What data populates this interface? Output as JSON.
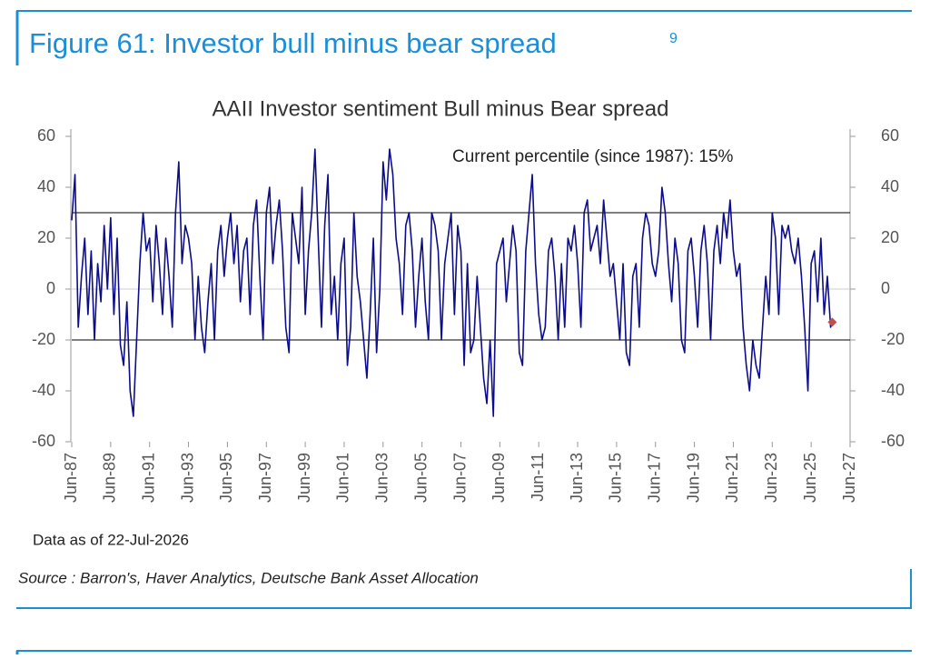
{
  "header": {
    "title": "Figure 61: Investor bull minus bear spread",
    "footnote": "9"
  },
  "chart_data": {
    "type": "line",
    "title": "AAII Investor sentiment Bull minus Bear spread",
    "annotation": "Current percentile (since 1987): 15%",
    "x": [
      "1987-06",
      "1987-08",
      "1987-10",
      "1987-12",
      "1988-02",
      "1988-04",
      "1988-06",
      "1988-08",
      "1988-10",
      "1988-12",
      "1989-02",
      "1989-04",
      "1989-06",
      "1989-08",
      "1989-10",
      "1989-12",
      "1990-02",
      "1990-04",
      "1990-06",
      "1990-08",
      "1990-10",
      "1990-12",
      "1991-02",
      "1991-04",
      "1991-06",
      "1991-08",
      "1991-10",
      "1991-12",
      "1992-02",
      "1992-04",
      "1992-06",
      "1992-08",
      "1992-10",
      "1992-12",
      "1993-02",
      "1993-04",
      "1993-06",
      "1993-08",
      "1993-10",
      "1993-12",
      "1994-02",
      "1994-04",
      "1994-06",
      "1994-08",
      "1994-10",
      "1994-12",
      "1995-02",
      "1995-04",
      "1995-06",
      "1995-08",
      "1995-10",
      "1995-12",
      "1996-02",
      "1996-04",
      "1996-06",
      "1996-08",
      "1996-10",
      "1996-12",
      "1997-02",
      "1997-04",
      "1997-06",
      "1997-08",
      "1997-10",
      "1997-12",
      "1998-02",
      "1998-04",
      "1998-06",
      "1998-08",
      "1998-10",
      "1998-12",
      "1999-02",
      "1999-04",
      "1999-06",
      "1999-08",
      "1999-10",
      "1999-12",
      "2000-02",
      "2000-04",
      "2000-06",
      "2000-08",
      "2000-10",
      "2000-12",
      "2001-02",
      "2001-04",
      "2001-06",
      "2001-08",
      "2001-10",
      "2001-12",
      "2002-02",
      "2002-04",
      "2002-06",
      "2002-08",
      "2002-10",
      "2002-12",
      "2003-02",
      "2003-04",
      "2003-06",
      "2003-08",
      "2003-10",
      "2003-12",
      "2004-02",
      "2004-04",
      "2004-06",
      "2004-08",
      "2004-10",
      "2004-12",
      "2005-02",
      "2005-04",
      "2005-06",
      "2005-08",
      "2005-10",
      "2005-12",
      "2006-02",
      "2006-04",
      "2006-06",
      "2006-08",
      "2006-10",
      "2006-12",
      "2007-02",
      "2007-04",
      "2007-06",
      "2007-08",
      "2007-10",
      "2007-12",
      "2008-02",
      "2008-04",
      "2008-06",
      "2008-08",
      "2008-10",
      "2008-12",
      "2009-02",
      "2009-04",
      "2009-06",
      "2009-08",
      "2009-10",
      "2009-12",
      "2010-02",
      "2010-04",
      "2010-06",
      "2010-08",
      "2010-10",
      "2010-12",
      "2011-02",
      "2011-04",
      "2011-06",
      "2011-08",
      "2011-10",
      "2011-12",
      "2012-02",
      "2012-04",
      "2012-06",
      "2012-08",
      "2012-10",
      "2012-12",
      "2013-02",
      "2013-04",
      "2013-06",
      "2013-08",
      "2013-10",
      "2013-12",
      "2014-02",
      "2014-04",
      "2014-06",
      "2014-08",
      "2014-10",
      "2014-12",
      "2015-02",
      "2015-04",
      "2015-06",
      "2015-08",
      "2015-10",
      "2015-12",
      "2016-02",
      "2016-04",
      "2016-06",
      "2016-08",
      "2016-10",
      "2016-12",
      "2017-02",
      "2017-04",
      "2017-06",
      "2017-08",
      "2017-10",
      "2017-12",
      "2018-02",
      "2018-04",
      "2018-06",
      "2018-08",
      "2018-10",
      "2018-12",
      "2019-02",
      "2019-04",
      "2019-06",
      "2019-08",
      "2019-10",
      "2019-12",
      "2020-02",
      "2020-04",
      "2020-06",
      "2020-08",
      "2020-10",
      "2020-12",
      "2021-02",
      "2021-04",
      "2021-06",
      "2021-08",
      "2021-10",
      "2021-12",
      "2022-02",
      "2022-04",
      "2022-06",
      "2022-08",
      "2022-10",
      "2022-12",
      "2023-02",
      "2023-04",
      "2023-06",
      "2023-08",
      "2023-10",
      "2023-12",
      "2024-02",
      "2024-04",
      "2024-06",
      "2024-08",
      "2024-10",
      "2024-12",
      "2025-02",
      "2025-04",
      "2025-06",
      "2025-08",
      "2025-10",
      "2025-12",
      "2026-02",
      "2026-04",
      "2026-06",
      "2026-07"
    ],
    "series": [
      {
        "color": "#0d0d8a",
        "values": [
          27,
          45,
          -15,
          5,
          20,
          -10,
          15,
          -20,
          10,
          -5,
          25,
          0,
          28,
          -10,
          20,
          -22,
          -30,
          -5,
          -40,
          -50,
          -20,
          10,
          30,
          15,
          20,
          -5,
          25,
          10,
          -10,
          20,
          5,
          -15,
          30,
          50,
          10,
          25,
          20,
          10,
          -20,
          5,
          -15,
          -25,
          -5,
          10,
          -20,
          15,
          25,
          5,
          20,
          30,
          10,
          25,
          -5,
          15,
          20,
          -10,
          25,
          35,
          5,
          -20,
          30,
          40,
          10,
          25,
          35,
          15,
          -15,
          -25,
          30,
          20,
          10,
          40,
          -10,
          15,
          30,
          55,
          20,
          -15,
          25,
          45,
          -10,
          5,
          -20,
          10,
          20,
          -30,
          -15,
          30,
          5,
          -5,
          -20,
          -35,
          -10,
          20,
          -25,
          0,
          50,
          35,
          55,
          45,
          20,
          10,
          -10,
          25,
          30,
          15,
          -15,
          5,
          20,
          -5,
          -20,
          30,
          25,
          15,
          -20,
          10,
          20,
          30,
          -10,
          25,
          15,
          -30,
          10,
          -25,
          -20,
          5,
          -15,
          -35,
          -45,
          -20,
          -50,
          10,
          15,
          20,
          -5,
          10,
          25,
          15,
          -25,
          -30,
          15,
          30,
          45,
          10,
          -10,
          -20,
          -15,
          15,
          20,
          5,
          -20,
          10,
          -15,
          20,
          15,
          25,
          10,
          -15,
          30,
          35,
          15,
          20,
          25,
          10,
          35,
          20,
          5,
          10,
          -5,
          -20,
          10,
          -25,
          -30,
          5,
          10,
          -15,
          20,
          30,
          25,
          10,
          5,
          15,
          40,
          30,
          10,
          -5,
          20,
          10,
          -20,
          -25,
          15,
          20,
          5,
          -15,
          15,
          25,
          10,
          -20,
          15,
          25,
          10,
          30,
          20,
          35,
          15,
          5,
          10,
          -15,
          -30,
          -40,
          -20,
          -30,
          -35,
          -15,
          5,
          -10,
          30,
          20,
          -10,
          25,
          20,
          25,
          15,
          10,
          20,
          5,
          -15,
          -40,
          10,
          15,
          -5,
          20,
          -10,
          5,
          -15,
          -13
        ]
      }
    ],
    "latest": {
      "x": "2026-07",
      "value": -13,
      "color": "#c0504d"
    },
    "reference_lines": [
      30,
      -20
    ],
    "xlim": [
      "1987-06",
      "2027-06"
    ],
    "xticks": [
      {
        "value": "1987-06",
        "label": "Jun-87"
      },
      {
        "value": "1989-06",
        "label": "Jun-89"
      },
      {
        "value": "1991-06",
        "label": "Jun-91"
      },
      {
        "value": "1993-06",
        "label": "Jun-93"
      },
      {
        "value": "1995-06",
        "label": "Jun-95"
      },
      {
        "value": "1997-06",
        "label": "Jun-97"
      },
      {
        "value": "1999-06",
        "label": "Jun-99"
      },
      {
        "value": "2001-06",
        "label": "Jun-01"
      },
      {
        "value": "2003-06",
        "label": "Jun-03"
      },
      {
        "value": "2005-06",
        "label": "Jun-05"
      },
      {
        "value": "2007-06",
        "label": "Jun-07"
      },
      {
        "value": "2009-06",
        "label": "Jun-09"
      },
      {
        "value": "2011-06",
        "label": "Jun-11"
      },
      {
        "value": "2013-06",
        "label": "Jun-13"
      },
      {
        "value": "2015-06",
        "label": "Jun-15"
      },
      {
        "value": "2017-06",
        "label": "Jun-17"
      },
      {
        "value": "2019-06",
        "label": "Jun-19"
      },
      {
        "value": "2021-06",
        "label": "Jun-21"
      },
      {
        "value": "2023-06",
        "label": "Jun-23"
      },
      {
        "value": "2025-06",
        "label": "Jun-25"
      },
      {
        "value": "2027-06",
        "label": "Jun-27"
      }
    ],
    "ylim": [
      -60,
      60
    ],
    "yticks": [
      -60,
      -40,
      -20,
      0,
      20,
      40,
      60
    ],
    "y2lim": [
      -60,
      60
    ],
    "y2ticks": [
      -60,
      -40,
      -20,
      0,
      20,
      40,
      60
    ]
  },
  "footer": {
    "data_note": "Data as of 22-Jul-2026",
    "source": "Source : Barron's, Haver Analytics, Deutsche Bank Asset Allocation"
  }
}
